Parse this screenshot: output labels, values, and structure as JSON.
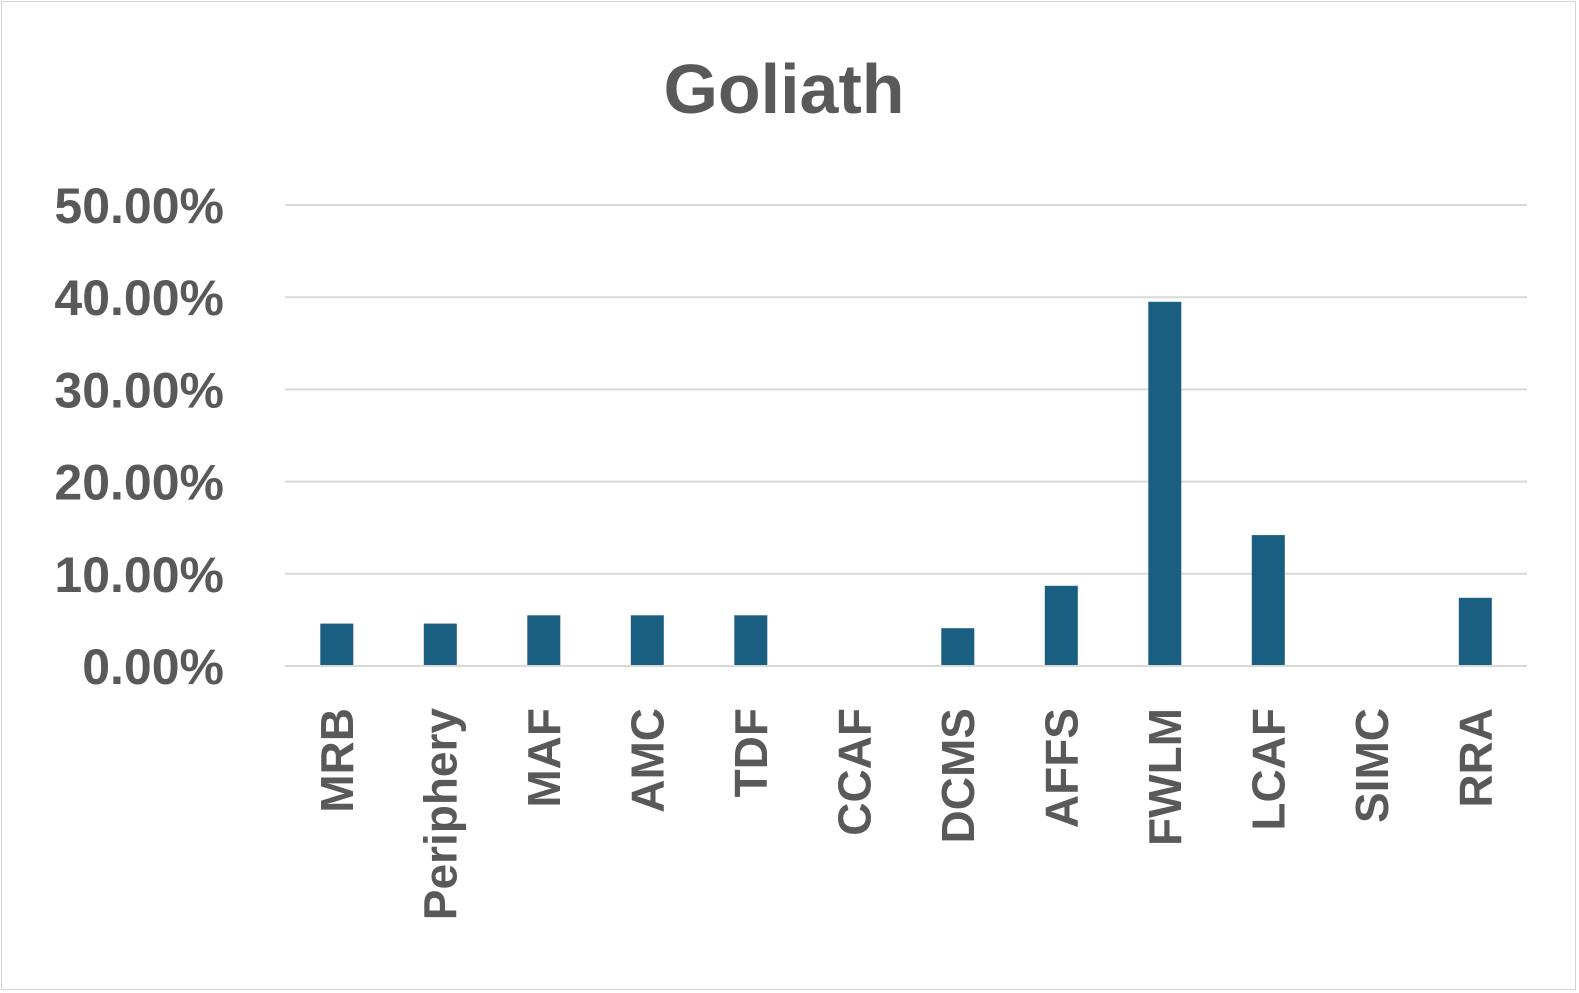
{
  "chart_data": {
    "type": "bar",
    "title": "Goliath",
    "xlabel": "",
    "ylabel": "",
    "categories": [
      "MRB",
      "Periphery",
      "MAF",
      "AMC",
      "TDF",
      "CCAF",
      "DCMS",
      "AFFS",
      "FWLM",
      "LCAF",
      "SIMC",
      "RRA"
    ],
    "values": [
      4.6,
      4.6,
      5.5,
      5.5,
      5.5,
      0,
      4.1,
      8.7,
      39.5,
      14.2,
      0,
      7.4
    ],
    "y_tick_labels": [
      "0.00%",
      "10.00%",
      "20.00%",
      "30.00%",
      "40.00%",
      "50.00%"
    ],
    "ylim": [
      0,
      50
    ],
    "y_major_unit": 10,
    "grid": true,
    "legend": "none",
    "bar_color": "#1a5e82",
    "text_color": "#595959",
    "grid_color": "#d9d9d9"
  }
}
